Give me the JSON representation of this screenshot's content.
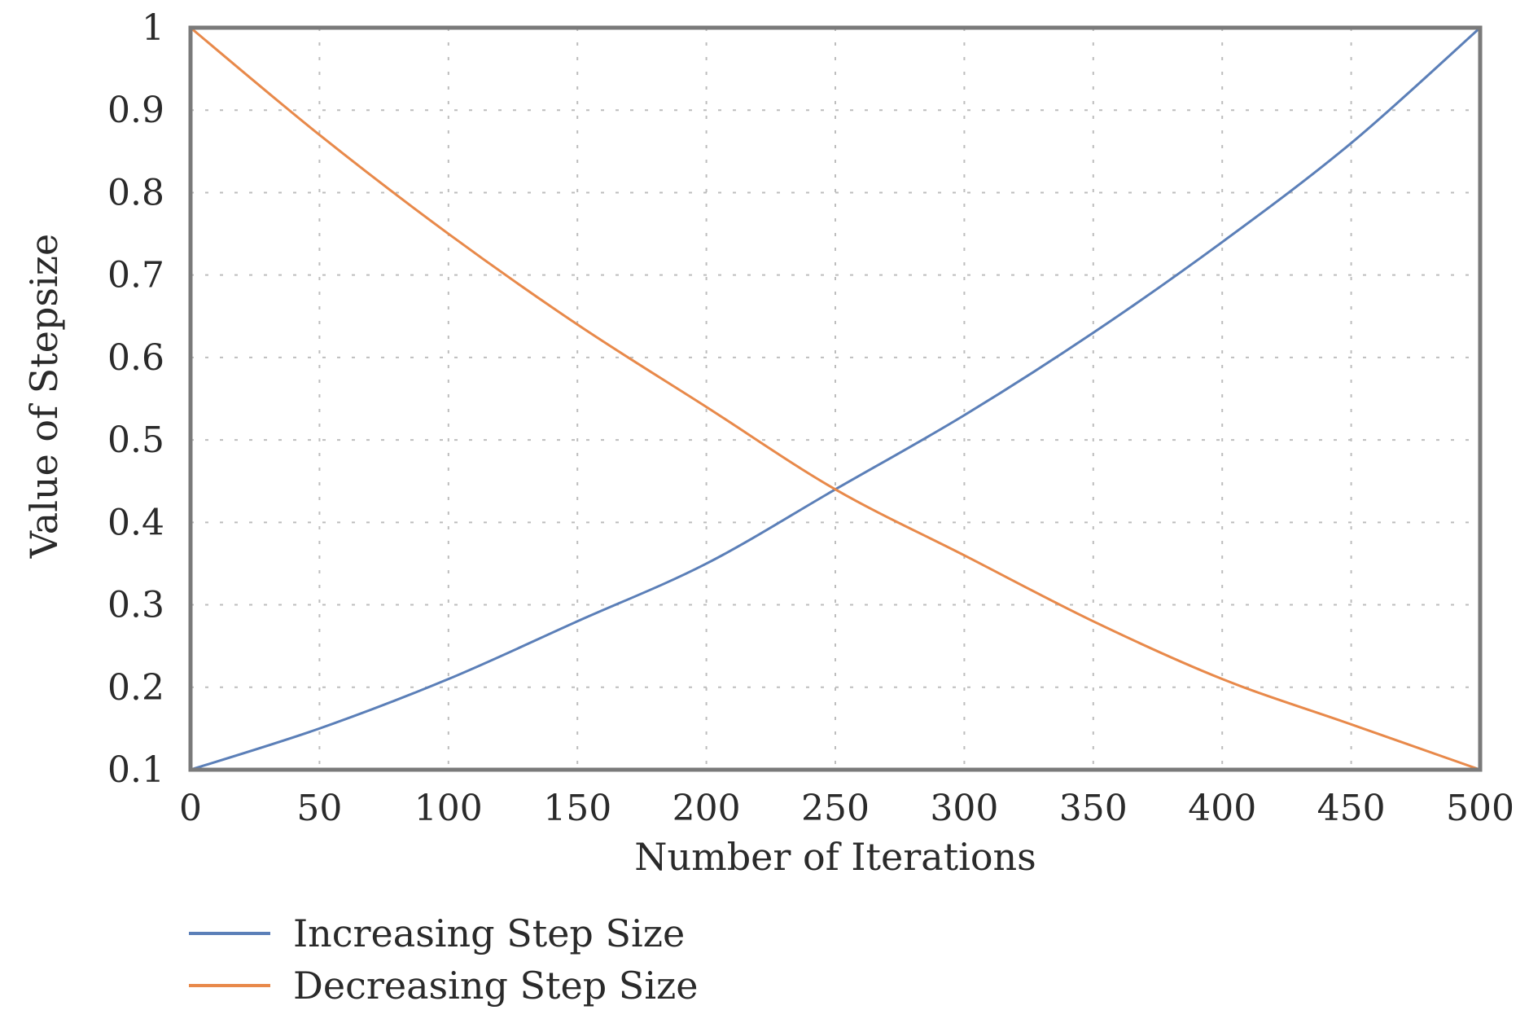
{
  "chart_data": {
    "type": "line",
    "title": "",
    "xlabel": "Number of Iterations",
    "ylabel": "Value of Stepsize",
    "xlim": [
      0,
      500
    ],
    "ylim": [
      0.1,
      1
    ],
    "x_ticks": [
      0,
      50,
      100,
      150,
      200,
      250,
      300,
      350,
      400,
      450,
      500
    ],
    "x_tick_labels": [
      "0",
      "50",
      "100",
      "150",
      "200",
      "250",
      "300",
      "350",
      "400",
      "450",
      "500"
    ],
    "y_ticks": [
      0.1,
      0.2,
      0.3,
      0.4,
      0.5,
      0.6,
      0.7,
      0.8,
      0.9,
      1
    ],
    "y_tick_labels": [
      "0.1",
      "0.2",
      "0.3",
      "0.4",
      "0.5",
      "0.6",
      "0.7",
      "0.8",
      "0.9",
      "1"
    ],
    "grid": true,
    "legend_position": "bottom-left, below plot",
    "x": [
      0,
      50,
      100,
      150,
      200,
      250,
      300,
      350,
      400,
      450,
      500
    ],
    "series": [
      {
        "name": "Increasing Step Size",
        "color": "#5b7fb8",
        "values": [
          0.1,
          0.15,
          0.21,
          0.28,
          0.35,
          0.44,
          0.53,
          0.63,
          0.74,
          0.86,
          1.0
        ]
      },
      {
        "name": "Decreasing Step Size",
        "color": "#e8894a",
        "values": [
          1.0,
          0.87,
          0.75,
          0.64,
          0.54,
          0.44,
          0.36,
          0.28,
          0.21,
          0.155,
          0.1
        ]
      }
    ]
  }
}
